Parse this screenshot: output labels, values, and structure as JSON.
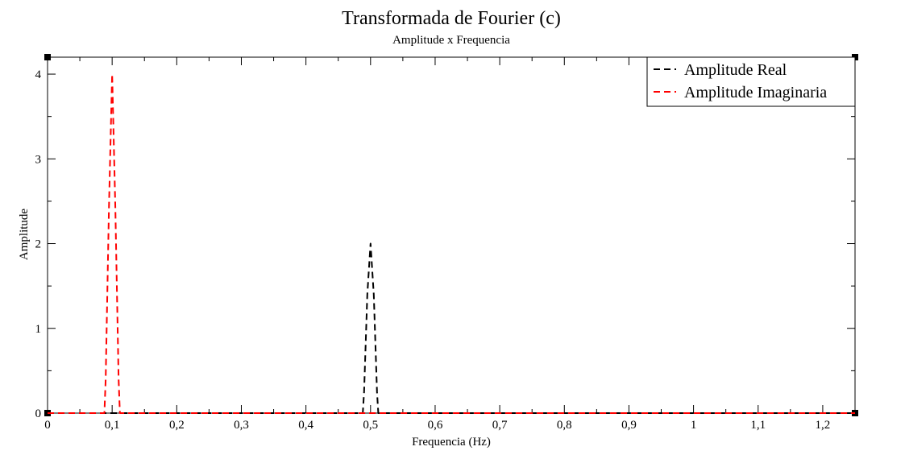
{
  "chart_data": {
    "type": "line",
    "title": "Transformada de Fourier (c)",
    "subtitle": "Amplitude x Frequencia",
    "xlabel": "Frequencia (Hz)",
    "ylabel": "Amplitude",
    "xlim": [
      0,
      1.25
    ],
    "ylim": [
      0,
      4.2
    ],
    "x_ticks": [
      0,
      0.1,
      0.2,
      0.3,
      0.4,
      0.5,
      0.6,
      0.7,
      0.8,
      0.9,
      1.0,
      1.1,
      1.2
    ],
    "x_tick_labels": [
      "0",
      "0,1",
      "0,2",
      "0,3",
      "0,4",
      "0,5",
      "0,6",
      "0,7",
      "0,8",
      "0,9",
      "1",
      "1,1",
      "1,2"
    ],
    "y_ticks": [
      0,
      1,
      2,
      3,
      4
    ],
    "y_tick_labels": [
      "0",
      "1",
      "2",
      "3",
      "4"
    ],
    "grid": false,
    "legend_position": "top-right",
    "series": [
      {
        "name": "Amplitude Real",
        "color": "#000000",
        "dash": "dashed",
        "x": [
          0,
          0.488,
          0.49,
          0.495,
          0.5,
          0.505,
          0.51,
          0.512,
          1.25
        ],
        "y": [
          0,
          0,
          0.25,
          1.4,
          2.0,
          1.4,
          0.25,
          0,
          0
        ]
      },
      {
        "name": "Amplitude Imaginaria",
        "color": "#ff0000",
        "dash": "dashed",
        "x": [
          0,
          0.088,
          0.09,
          0.095,
          0.1,
          0.105,
          0.11,
          0.112,
          1.25
        ],
        "y": [
          0,
          0,
          0.4,
          2.4,
          4.0,
          2.4,
          0.4,
          0,
          0
        ]
      }
    ]
  }
}
